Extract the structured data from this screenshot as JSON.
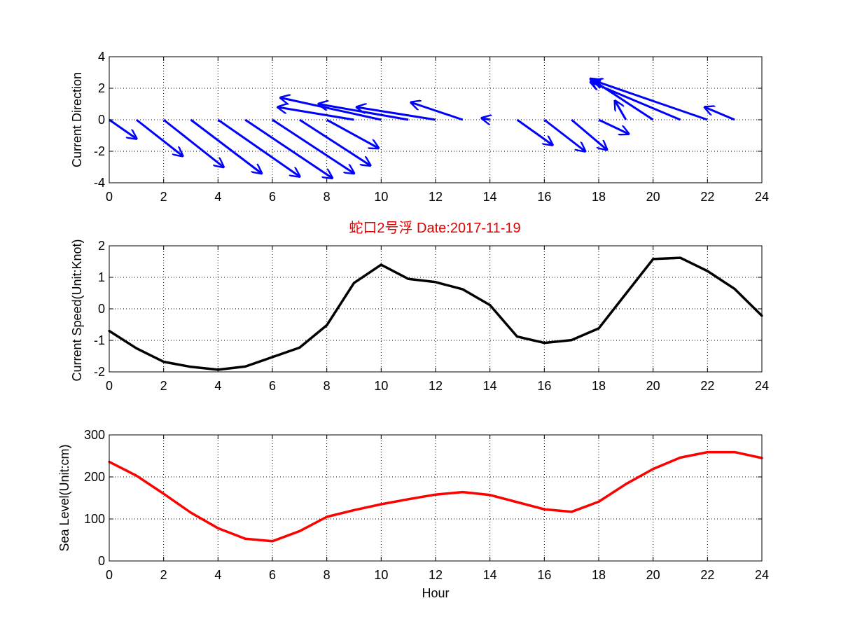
{
  "figure": {
    "title": "蛇口2号浮    Date:2017-11-19",
    "title_color": "#e00000",
    "background": "#ffffff"
  },
  "chart_data": [
    {
      "type": "quiver",
      "name": "current-direction",
      "ylabel": "Current Direction",
      "xlabel": "",
      "xlim": [
        0,
        24
      ],
      "ylim": [
        -4,
        4
      ],
      "xticks": [
        0,
        2,
        4,
        6,
        8,
        10,
        12,
        14,
        16,
        18,
        20,
        22,
        24
      ],
      "yticks": [
        -4,
        -2,
        0,
        2,
        4
      ],
      "grid": true,
      "color": "#0000ff",
      "arrows": [
        {
          "x": 0,
          "u": 1.0,
          "v": -1.2
        },
        {
          "x": 1,
          "u": 1.7,
          "v": -2.3
        },
        {
          "x": 2,
          "u": 2.2,
          "v": -3.0
        },
        {
          "x": 3,
          "u": 2.6,
          "v": -3.4
        },
        {
          "x": 4,
          "u": 3.0,
          "v": -3.6
        },
        {
          "x": 5,
          "u": 3.2,
          "v": -3.7
        },
        {
          "x": 6,
          "u": 3.0,
          "v": -3.4
        },
        {
          "x": 7,
          "u": 2.6,
          "v": -2.9
        },
        {
          "x": 8,
          "u": 1.9,
          "v": -1.8
        },
        {
          "x": 9,
          "u": -2.8,
          "v": 0.8
        },
        {
          "x": 10,
          "u": -3.7,
          "v": 1.4
        },
        {
          "x": 11,
          "u": -3.3,
          "v": 1.0
        },
        {
          "x": 12,
          "u": -2.9,
          "v": 0.8
        },
        {
          "x": 13,
          "u": -1.9,
          "v": 1.1
        },
        {
          "x": 14,
          "u": -0.3,
          "v": 0.1
        },
        {
          "x": 15,
          "u": 1.3,
          "v": -1.6
        },
        {
          "x": 16,
          "u": 1.5,
          "v": -2.0
        },
        {
          "x": 17,
          "u": 1.3,
          "v": -1.9
        },
        {
          "x": 18,
          "u": 1.1,
          "v": -0.9
        },
        {
          "x": 19,
          "u": -0.4,
          "v": 1.2
        },
        {
          "x": 20,
          "u": -2.3,
          "v": 2.6
        },
        {
          "x": 21,
          "u": -3.3,
          "v": 2.4
        },
        {
          "x": 22,
          "u": -4.2,
          "v": 2.5
        },
        {
          "x": 23,
          "u": -1.1,
          "v": 0.8
        }
      ]
    },
    {
      "type": "line",
      "name": "current-speed",
      "ylabel": "Current Speed(Unit:Knot)",
      "xlabel": "",
      "xlim": [
        0,
        24
      ],
      "ylim": [
        -2,
        2
      ],
      "xticks": [
        0,
        2,
        4,
        6,
        8,
        10,
        12,
        14,
        16,
        18,
        20,
        22,
        24
      ],
      "yticks": [
        -2,
        -1,
        0,
        1,
        2
      ],
      "grid": true,
      "color": "#000000",
      "x": [
        0,
        1,
        2,
        3,
        4,
        5,
        6,
        7,
        8,
        9,
        10,
        11,
        12,
        13,
        14,
        15,
        16,
        17,
        18,
        19,
        20,
        21,
        22,
        23,
        24
      ],
      "values": [
        -0.7,
        -1.25,
        -1.68,
        -1.84,
        -1.93,
        -1.83,
        -1.53,
        -1.23,
        -0.52,
        0.82,
        1.4,
        0.95,
        0.85,
        0.62,
        0.12,
        -0.88,
        -1.08,
        -0.99,
        -0.62,
        0.48,
        1.58,
        1.62,
        1.2,
        0.63,
        -0.22
      ]
    },
    {
      "type": "line",
      "name": "sea-level",
      "ylabel": "Sea Level(Unit:cm)",
      "xlabel": "Hour",
      "xlim": [
        0,
        24
      ],
      "ylim": [
        0,
        300
      ],
      "xticks": [
        0,
        2,
        4,
        6,
        8,
        10,
        12,
        14,
        16,
        18,
        20,
        22,
        24
      ],
      "yticks": [
        0,
        100,
        200,
        300
      ],
      "grid": true,
      "color": "#ff0000",
      "x": [
        0,
        1,
        2,
        3,
        4,
        5,
        6,
        7,
        8,
        9,
        10,
        11,
        12,
        13,
        14,
        15,
        16,
        17,
        18,
        19,
        20,
        21,
        22,
        23,
        24
      ],
      "values": [
        236,
        203,
        160,
        115,
        78,
        53,
        47,
        71,
        105,
        121,
        135,
        147,
        158,
        164,
        157,
        140,
        123,
        117,
        141,
        183,
        219,
        246,
        259,
        259,
        245
      ]
    }
  ]
}
